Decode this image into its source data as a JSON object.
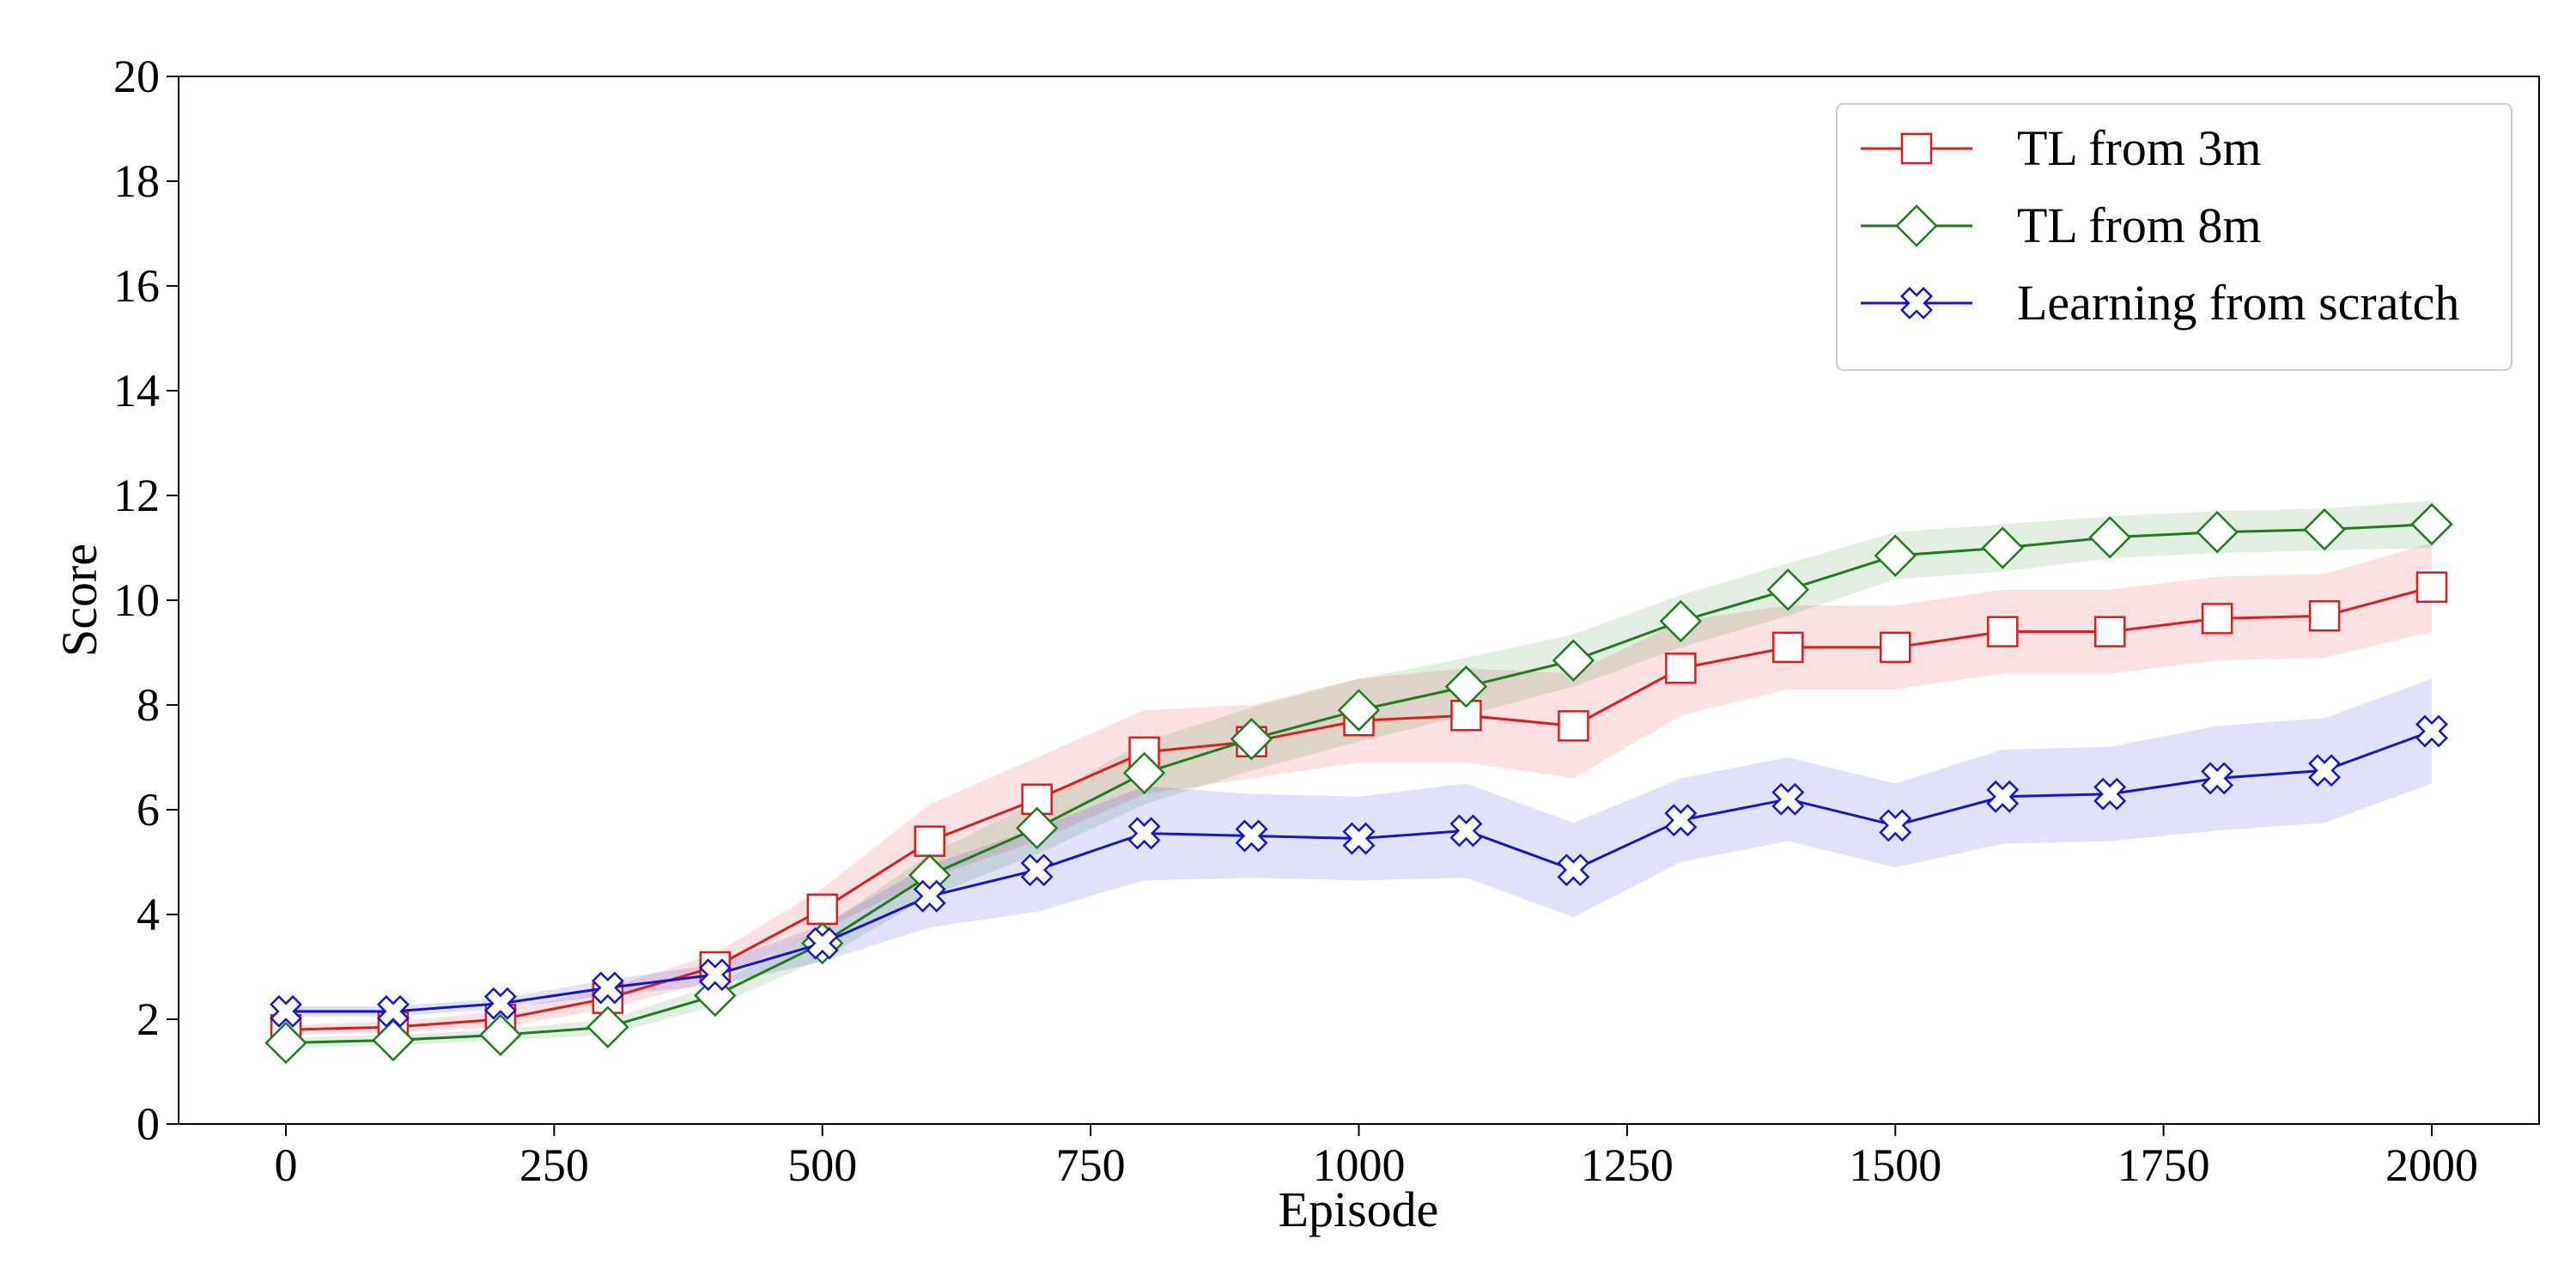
{
  "chart_data": {
    "type": "line",
    "x_label": "Episode",
    "y_label": "Score",
    "x": [
      0,
      100,
      200,
      300,
      400,
      500,
      600,
      700,
      800,
      900,
      1000,
      1100,
      1200,
      1300,
      1400,
      1500,
      1600,
      1700,
      1800,
      1900,
      2000
    ],
    "xlim": [
      -100,
      2100
    ],
    "xticks": [
      0,
      250,
      500,
      750,
      1000,
      1250,
      1500,
      1750,
      2000
    ],
    "ylim": [
      0,
      20
    ],
    "yticks": [
      0,
      2,
      4,
      6,
      8,
      10,
      12,
      14,
      16,
      18,
      20
    ],
    "legend": "upper right",
    "series": [
      {
        "name": "TL from 3m",
        "color": "#e31a1c",
        "marker": "square",
        "values": [
          1.8,
          1.85,
          2.0,
          2.4,
          3.0,
          4.1,
          5.4,
          6.2,
          7.1,
          7.3,
          7.7,
          7.8,
          7.6,
          8.7,
          9.1,
          9.1,
          9.4,
          9.4,
          9.65,
          9.7,
          10.25
        ],
        "lower": [
          1.7,
          1.75,
          1.85,
          2.2,
          2.75,
          3.7,
          4.7,
          5.4,
          6.3,
          6.6,
          6.9,
          6.9,
          6.6,
          7.8,
          8.3,
          8.3,
          8.6,
          8.6,
          8.85,
          8.9,
          9.4
        ],
        "upper": [
          1.9,
          1.95,
          2.15,
          2.6,
          3.25,
          4.5,
          6.1,
          7.0,
          7.9,
          8.0,
          8.5,
          8.7,
          8.6,
          9.6,
          9.9,
          9.9,
          10.2,
          10.2,
          10.45,
          10.5,
          11.1
        ]
      },
      {
        "name": "TL from 8m",
        "color": "#1a7f1a",
        "marker": "diamond",
        "values": [
          1.55,
          1.6,
          1.7,
          1.85,
          2.45,
          3.45,
          4.75,
          5.65,
          6.7,
          7.35,
          7.9,
          8.35,
          8.85,
          9.6,
          10.2,
          10.85,
          11.0,
          11.2,
          11.3,
          11.35,
          11.45
        ],
        "lower": [
          1.45,
          1.5,
          1.6,
          1.7,
          2.25,
          3.15,
          4.35,
          5.15,
          6.1,
          6.75,
          7.3,
          7.8,
          8.35,
          9.1,
          9.7,
          10.4,
          10.55,
          10.8,
          10.9,
          10.95,
          11.0
        ],
        "upper": [
          1.65,
          1.7,
          1.8,
          2.0,
          2.65,
          3.75,
          5.15,
          6.15,
          7.3,
          7.95,
          8.5,
          8.9,
          9.35,
          10.1,
          10.7,
          11.3,
          11.45,
          11.6,
          11.7,
          11.75,
          11.9
        ]
      },
      {
        "name": "Learning from scratch",
        "color": "#1414d2",
        "marker": "x",
        "values": [
          2.15,
          2.15,
          2.3,
          2.6,
          2.85,
          3.45,
          4.35,
          4.85,
          5.55,
          5.5,
          5.45,
          5.6,
          4.85,
          5.8,
          6.2,
          5.7,
          6.25,
          6.3,
          6.6,
          6.75,
          7.5
        ],
        "lower": [
          2.05,
          2.05,
          2.2,
          2.45,
          2.65,
          3.1,
          3.75,
          4.05,
          4.65,
          4.7,
          4.65,
          4.7,
          3.95,
          5.0,
          5.4,
          4.9,
          5.35,
          5.4,
          5.6,
          5.75,
          6.5
        ],
        "upper": [
          2.25,
          2.25,
          2.4,
          2.75,
          3.05,
          3.8,
          4.95,
          5.65,
          6.45,
          6.3,
          6.25,
          6.5,
          5.75,
          6.6,
          7.0,
          6.5,
          7.15,
          7.2,
          7.6,
          7.75,
          8.5
        ]
      }
    ]
  }
}
